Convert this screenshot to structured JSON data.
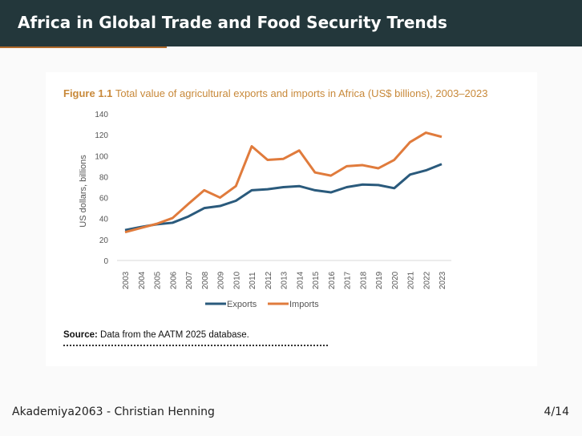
{
  "header": {
    "title": "Africa in Global Trade and Food Security Trends"
  },
  "figure": {
    "label": "Figure 1.1",
    "caption": "Total value of agricultural exports and imports in Africa (US$ billions), 2003–2023",
    "source_label": "Source:",
    "source_text": "Data from the AATM 2025 database."
  },
  "chart_data": {
    "type": "line",
    "title": "",
    "ylabel": "US dollars, billions",
    "xlabel": "",
    "ylim": [
      0,
      140
    ],
    "yticks": [
      0,
      20,
      40,
      60,
      80,
      100,
      120,
      140
    ],
    "x": [
      "2003",
      "2004",
      "2005",
      "2006",
      "2007",
      "2008",
      "2009",
      "2010",
      "2011",
      "2012",
      "2013",
      "2014",
      "2015",
      "2016",
      "2017",
      "2018",
      "2019",
      "2020",
      "2021",
      "2022",
      "2023"
    ],
    "grid": false,
    "legend": "bottom",
    "series": [
      {
        "name": "Exports",
        "color": "#2a5a7c",
        "values": [
          29,
          32,
          34.5,
          36,
          42,
          50,
          52,
          57,
          67,
          68,
          70,
          71,
          67,
          65,
          70,
          72.5,
          72,
          69,
          82,
          86,
          92
        ]
      },
      {
        "name": "Imports",
        "color": "#e07b3c",
        "values": [
          27,
          31,
          35,
          40.5,
          54,
          67,
          60,
          71,
          109,
          96,
          97,
          105,
          84,
          81,
          90,
          91,
          88,
          96,
          113,
          122,
          118
        ]
      }
    ]
  },
  "footer": {
    "left": "Akademiya2063 - Christian Henning",
    "page": "4/14"
  }
}
